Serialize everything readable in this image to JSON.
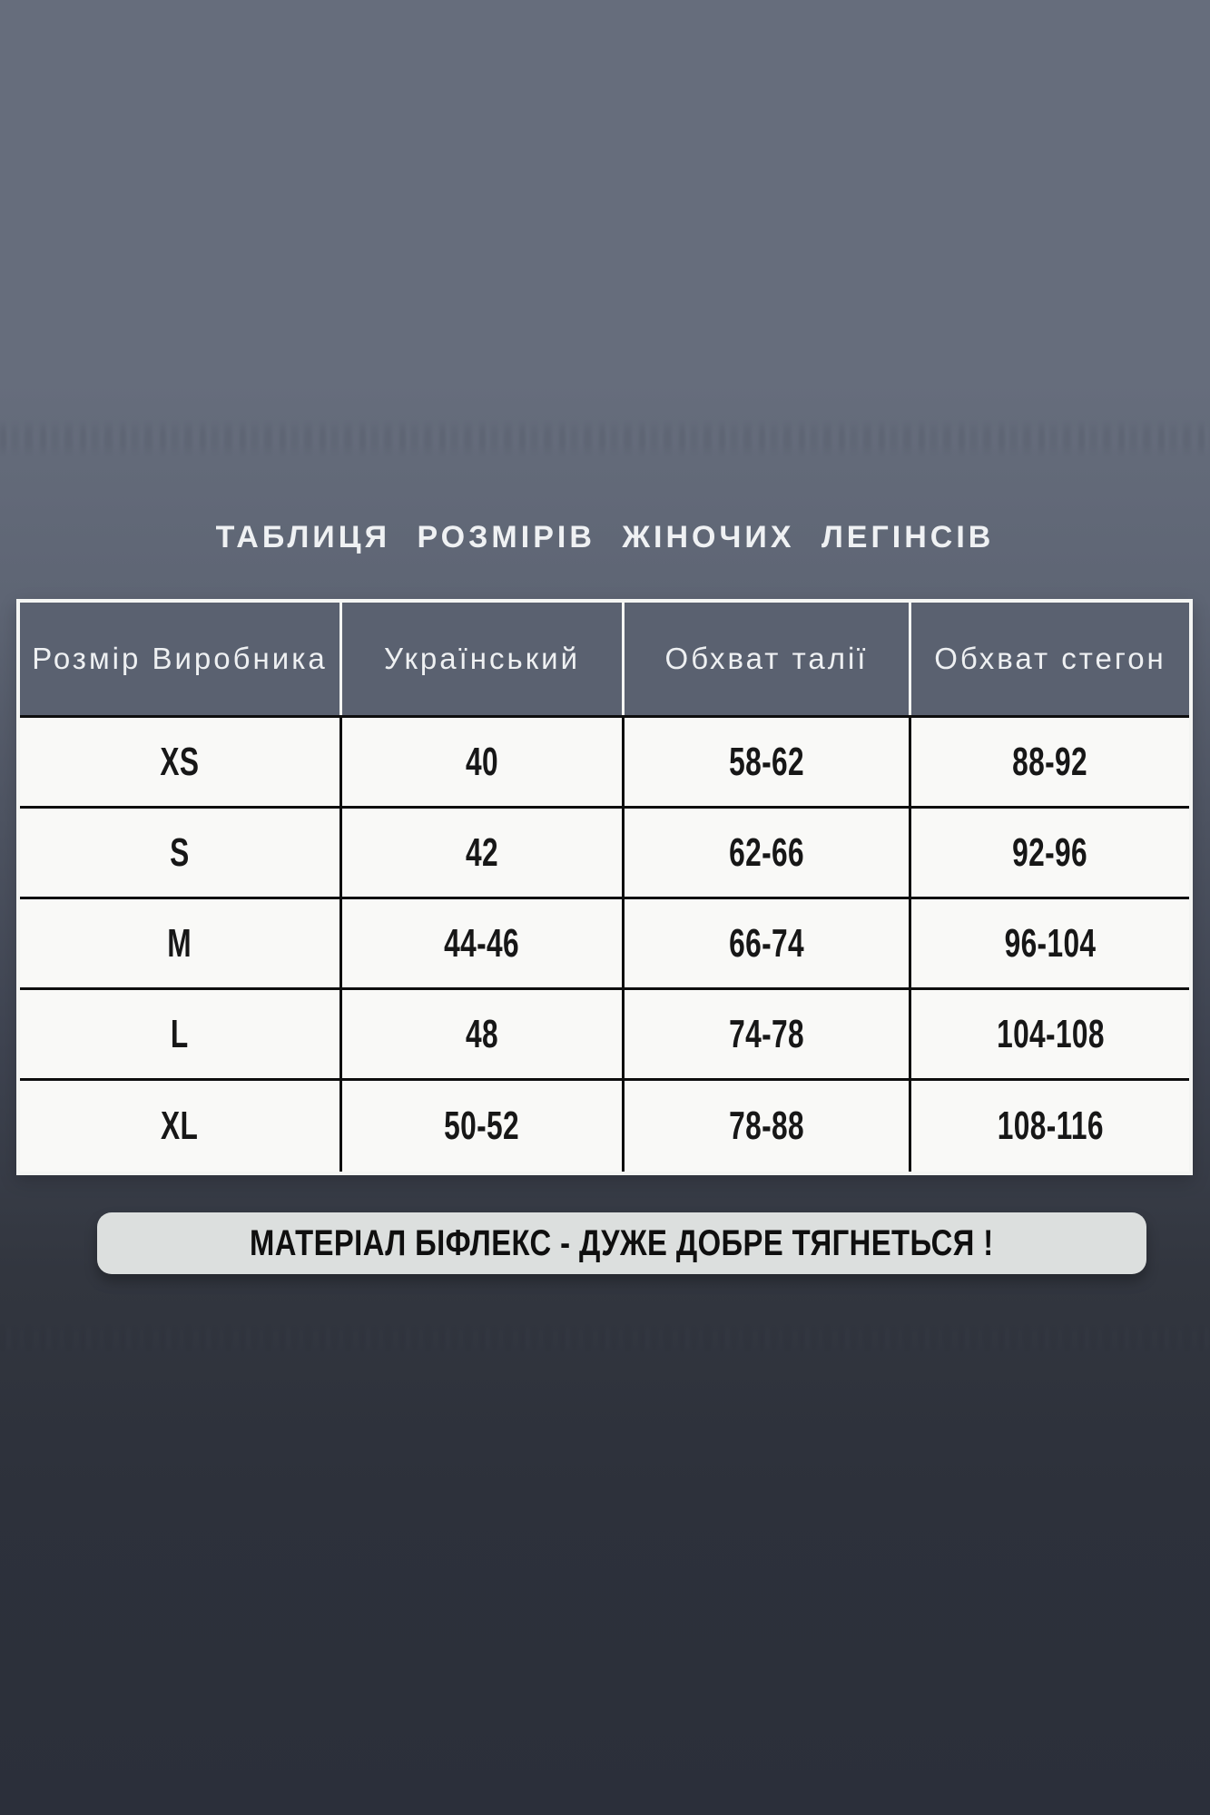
{
  "chart_data": {
    "type": "table",
    "title": "ТАБЛИЦЯ РОЗМІРІВ ЖІНОЧИХ ЛЕГІНСІВ",
    "columns": [
      "Розмір Виробника",
      "Український",
      "Обхват талії",
      "Обхват стегон"
    ],
    "rows": [
      [
        "XS",
        "40",
        "58-62",
        "88-92"
      ],
      [
        "S",
        "42",
        "62-66",
        "92-96"
      ],
      [
        "M",
        "44-46",
        "66-74",
        "96-104"
      ],
      [
        "L",
        "48",
        "74-78",
        "104-108"
      ],
      [
        "XL",
        "50-52",
        "78-88",
        "108-116"
      ]
    ],
    "legend_position": "none",
    "grid": true
  },
  "banner": {
    "text": "МАТЕРІАЛ БІФЛЕКС - ДУЖЕ ДОБРЕ ТЯГНЕТЬСЯ !"
  },
  "colors": {
    "bg_top": "#666d7c",
    "bg_bottom": "#2b2f3a",
    "header_cell_bg": "#5a6170",
    "header_text": "#eef0f2",
    "body_cell_bg": "#f9f9f7",
    "body_text": "#171717",
    "grid_line": "#0e0e0e",
    "outer_border": "#f4f5f3",
    "banner_bg": "#dcdfde",
    "banner_text": "#0f0f0f",
    "title_text": "#eff1f3"
  }
}
